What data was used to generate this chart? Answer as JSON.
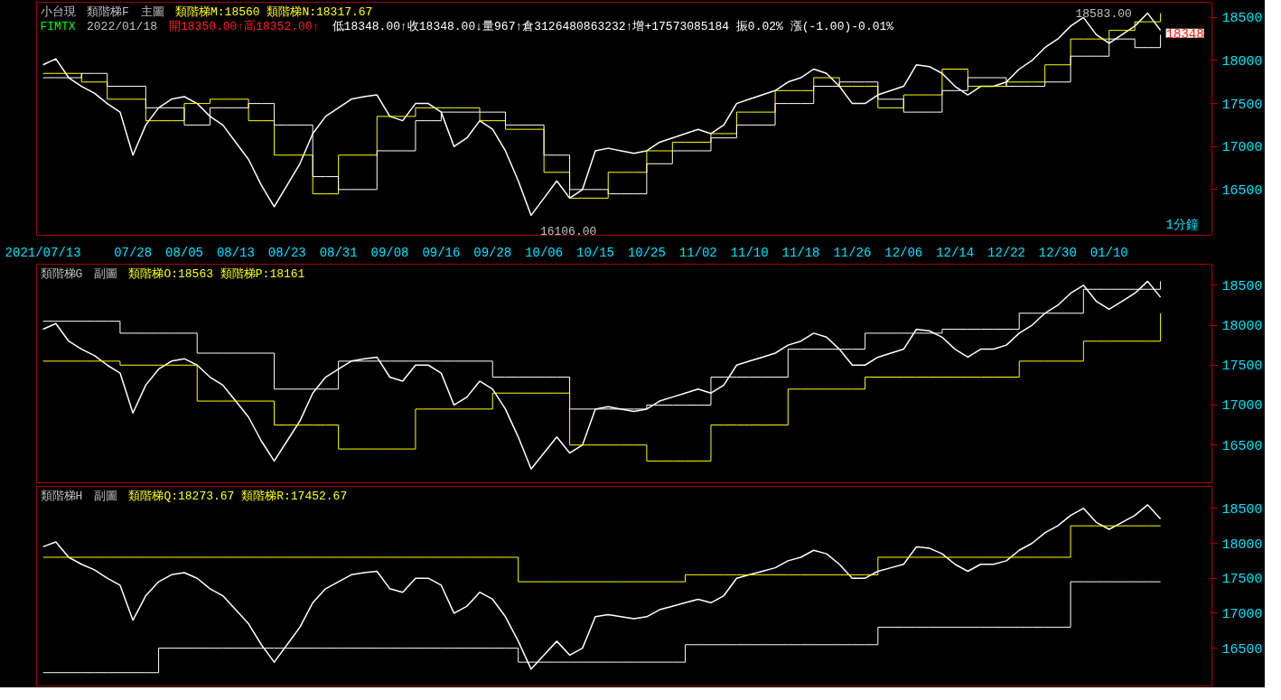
{
  "chart_data": [
    {
      "type": "line",
      "title": "小台現",
      "subtitle": "類階梯F",
      "ylim": [
        15968,
        18677
      ],
      "yticks": [
        16500,
        17000,
        17500,
        18000,
        18500
      ],
      "categories": [
        "2021/07/13",
        null,
        null,
        null,
        null,
        null,
        null,
        "07/28",
        null,
        null,
        null,
        "08/05",
        null,
        null,
        null,
        "08/13",
        null,
        null,
        null,
        "08/23",
        null,
        null,
        null,
        "08/31",
        null,
        null,
        null,
        "09/08",
        null,
        null,
        null,
        "09/16",
        null,
        null,
        null,
        "09/28",
        null,
        null,
        null,
        "10/06",
        null,
        null,
        null,
        "10/15",
        null,
        null,
        null,
        "10/25",
        null,
        null,
        null,
        "11/02",
        null,
        null,
        null,
        "11/10",
        null,
        null,
        null,
        "11/18",
        null,
        null,
        null,
        "11/26",
        null,
        null,
        null,
        "12/06",
        null,
        null,
        null,
        "12/14",
        null,
        null,
        null,
        "12/22",
        null,
        null,
        null,
        "12/30",
        null,
        null,
        null,
        "01/10",
        null,
        null,
        null,
        null
      ],
      "grid": false,
      "annotations": [
        "主圖",
        "類階梯M:18560 類階梯N:18317.67",
        "FIMTX",
        "2022/01/18",
        "開18350.00↑高18352.00↑",
        "低18348.00↑收18348.00↓量967↑倉3126480863232↑增+17573085184 振0.02% 漲(-1.00)-0.01%",
        "1分鐘",
        "18583.00",
        "16106.00",
        "18348"
      ],
      "series": [
        {
          "color": "#ffffff",
          "values": [
            17950,
            18020,
            17800,
            17700,
            17620,
            17500,
            17400,
            16900,
            17250,
            17450,
            17550,
            17580,
            17500,
            17350,
            17250,
            17050,
            16850,
            16550,
            16300,
            16550,
            16800,
            17150,
            17350,
            17450,
            17550,
            17580,
            17600,
            17350,
            17300,
            17500,
            17500,
            17400,
            17000,
            17100,
            17300,
            17200,
            16950,
            16600,
            16200,
            16400,
            16600,
            16400,
            16500,
            16950,
            16980,
            16950,
            16920,
            16950,
            17050,
            17100,
            17150,
            17200,
            17150,
            17250,
            17500,
            17550,
            17600,
            17650,
            17750,
            17800,
            17900,
            17850,
            17700,
            17500,
            17500,
            17600,
            17650,
            17700,
            17950,
            17930,
            17850,
            17700,
            17600,
            17700,
            17700,
            17750,
            17900,
            18000,
            18150,
            18250,
            18400,
            18500,
            18300,
            18200,
            18300,
            18400,
            18550,
            18350
          ]
        },
        {
          "type": "step",
          "color": "#ffff00",
          "values": [
            17850,
            17850,
            17850,
            17750,
            17750,
            17550,
            17550,
            17550,
            17300,
            17300,
            17300,
            17500,
            17500,
            17550,
            17550,
            17550,
            17300,
            17300,
            16900,
            16900,
            16900,
            16450,
            16450,
            16900,
            16900,
            16900,
            17350,
            17350,
            17350,
            17450,
            17450,
            17450,
            17450,
            17450,
            17300,
            17300,
            17200,
            17200,
            17200,
            16700,
            16700,
            16400,
            16400,
            16400,
            16700,
            16700,
            16700,
            16950,
            16950,
            17050,
            17050,
            17050,
            17150,
            17150,
            17400,
            17400,
            17400,
            17650,
            17650,
            17650,
            17800,
            17800,
            17700,
            17700,
            17700,
            17450,
            17450,
            17600,
            17600,
            17600,
            17900,
            17900,
            17700,
            17700,
            17700,
            17750,
            17750,
            17750,
            17950,
            17950,
            18250,
            18250,
            18250,
            18350,
            18350,
            18450,
            18450,
            18550
          ]
        },
        {
          "type": "step",
          "color": "#ffffff",
          "values": [
            17800,
            17800,
            17800,
            17850,
            17850,
            17700,
            17700,
            17700,
            17450,
            17450,
            17450,
            17250,
            17250,
            17450,
            17450,
            17450,
            17500,
            17500,
            17250,
            17250,
            17250,
            16650,
            16650,
            16500,
            16500,
            16500,
            16950,
            16950,
            16950,
            17300,
            17300,
            17400,
            17400,
            17400,
            17400,
            17400,
            17250,
            17250,
            17250,
            16900,
            16900,
            16500,
            16500,
            16500,
            16450,
            16450,
            16450,
            16800,
            16800,
            16950,
            16950,
            16950,
            17100,
            17100,
            17250,
            17250,
            17250,
            17500,
            17500,
            17500,
            17700,
            17700,
            17750,
            17750,
            17750,
            17550,
            17550,
            17400,
            17400,
            17400,
            17650,
            17650,
            17800,
            17800,
            17800,
            17700,
            17700,
            17700,
            17750,
            17750,
            18050,
            18050,
            18050,
            18250,
            18250,
            18150,
            18150,
            18300
          ]
        }
      ]
    },
    {
      "type": "line",
      "title": "類階梯G",
      "ylim": [
        16027,
        18764
      ],
      "yticks": [
        16500,
        17000,
        17500,
        18000,
        18500
      ],
      "tick_labels": "y",
      "grid": false,
      "categories": [
        null,
        null,
        null,
        null,
        null,
        null,
        null,
        null,
        null,
        null,
        null,
        null,
        null,
        null,
        null,
        null,
        null,
        null,
        null,
        null,
        null,
        null,
        null,
        null,
        null,
        null,
        null,
        null,
        null,
        null,
        null,
        null,
        null,
        null,
        null,
        null,
        null,
        null,
        null,
        null,
        null,
        null,
        null,
        null,
        null,
        null,
        null,
        null,
        null,
        null,
        null,
        null,
        null,
        null,
        null,
        null,
        null,
        null,
        null,
        null,
        null,
        null,
        null,
        null,
        null,
        null,
        null,
        null,
        null,
        null,
        null,
        null,
        null,
        null,
        null,
        null,
        null,
        null,
        null,
        null,
        null,
        null,
        null,
        null,
        null,
        null,
        null,
        null
      ],
      "annotations": [
        "副圖",
        "類階梯O:18563 類階梯P:18161"
      ],
      "series": [
        {
          "color": "#ffffff",
          "values": [
            17950,
            18020,
            17800,
            17700,
            17620,
            17500,
            17400,
            16900,
            17250,
            17450,
            17550,
            17580,
            17500,
            17350,
            17250,
            17050,
            16850,
            16550,
            16300,
            16550,
            16800,
            17150,
            17350,
            17450,
            17550,
            17580,
            17600,
            17350,
            17300,
            17500,
            17500,
            17400,
            17000,
            17100,
            17300,
            17200,
            16950,
            16600,
            16200,
            16400,
            16600,
            16400,
            16500,
            16950,
            16980,
            16950,
            16920,
            16950,
            17050,
            17100,
            17150,
            17200,
            17150,
            17250,
            17500,
            17550,
            17600,
            17650,
            17750,
            17800,
            17900,
            17850,
            17700,
            17500,
            17500,
            17600,
            17650,
            17700,
            17950,
            17930,
            17850,
            17700,
            17600,
            17700,
            17700,
            17750,
            17900,
            18000,
            18150,
            18250,
            18400,
            18500,
            18300,
            18200,
            18300,
            18400,
            18550,
            18350
          ]
        },
        {
          "type": "step",
          "color": "#ffffff",
          "values": [
            18050,
            18050,
            18050,
            18050,
            18050,
            18050,
            17900,
            17900,
            17900,
            17900,
            17900,
            17900,
            17650,
            17650,
            17650,
            17650,
            17650,
            17650,
            17200,
            17200,
            17200,
            17200,
            17200,
            17550,
            17550,
            17550,
            17550,
            17550,
            17550,
            17550,
            17550,
            17550,
            17550,
            17550,
            17550,
            17350,
            17350,
            17350,
            17350,
            17350,
            17350,
            16950,
            16950,
            16950,
            16950,
            16950,
            16950,
            17000,
            17000,
            17000,
            17000,
            17000,
            17350,
            17350,
            17350,
            17350,
            17350,
            17350,
            17700,
            17700,
            17700,
            17700,
            17700,
            17700,
            17900,
            17900,
            17900,
            17900,
            17900,
            17900,
            17950,
            17950,
            17950,
            17950,
            17950,
            17950,
            18150,
            18150,
            18150,
            18150,
            18150,
            18450,
            18450,
            18450,
            18450,
            18450,
            18450,
            18550
          ]
        },
        {
          "type": "step",
          "color": "#ffff00",
          "values": [
            17550,
            17550,
            17550,
            17550,
            17550,
            17550,
            17500,
            17500,
            17500,
            17500,
            17500,
            17500,
            17050,
            17050,
            17050,
            17050,
            17050,
            17050,
            16750,
            16750,
            16750,
            16750,
            16750,
            16450,
            16450,
            16450,
            16450,
            16450,
            16450,
            16950,
            16950,
            16950,
            16950,
            16950,
            16950,
            17150,
            17150,
            17150,
            17150,
            17150,
            17150,
            16500,
            16500,
            16500,
            16500,
            16500,
            16500,
            16300,
            16300,
            16300,
            16300,
            16300,
            16750,
            16750,
            16750,
            16750,
            16750,
            16750,
            17200,
            17200,
            17200,
            17200,
            17200,
            17200,
            17350,
            17350,
            17350,
            17350,
            17350,
            17350,
            17350,
            17350,
            17350,
            17350,
            17350,
            17350,
            17550,
            17550,
            17550,
            17550,
            17550,
            17800,
            17800,
            17800,
            17800,
            17800,
            17800,
            18150
          ]
        }
      ]
    },
    {
      "type": "line",
      "title": "類階梯H",
      "ylim": [
        15959,
        18814
      ],
      "yticks": [
        16500,
        17000,
        17500,
        18000,
        18500
      ],
      "tick_labels": "y",
      "grid": false,
      "categories": [
        null,
        null,
        null,
        null,
        null,
        null,
        null,
        null,
        null,
        null,
        null,
        null,
        null,
        null,
        null,
        null,
        null,
        null,
        null,
        null,
        null,
        null,
        null,
        null,
        null,
        null,
        null,
        null,
        null,
        null,
        null,
        null,
        null,
        null,
        null,
        null,
        null,
        null,
        null,
        null,
        null,
        null,
        null,
        null,
        null,
        null,
        null,
        null,
        null,
        null,
        null,
        null,
        null,
        null,
        null,
        null,
        null,
        null,
        null,
        null,
        null,
        null,
        null,
        null,
        null,
        null,
        null,
        null,
        null,
        null,
        null,
        null,
        null,
        null,
        null,
        null,
        null,
        null,
        null,
        null,
        null,
        null,
        null,
        null,
        null,
        null,
        null,
        null
      ],
      "annotations": [
        "副圖",
        "類階梯Q:18273.67 類階梯R:17452.67"
      ],
      "series": [
        {
          "color": "#ffffff",
          "values": [
            17950,
            18020,
            17800,
            17700,
            17620,
            17500,
            17400,
            16900,
            17250,
            17450,
            17550,
            17580,
            17500,
            17350,
            17250,
            17050,
            16850,
            16550,
            16300,
            16550,
            16800,
            17150,
            17350,
            17450,
            17550,
            17580,
            17600,
            17350,
            17300,
            17500,
            17500,
            17400,
            17000,
            17100,
            17300,
            17200,
            16950,
            16600,
            16200,
            16400,
            16600,
            16400,
            16500,
            16950,
            16980,
            16950,
            16920,
            16950,
            17050,
            17100,
            17150,
            17200,
            17150,
            17250,
            17500,
            17550,
            17600,
            17650,
            17750,
            17800,
            17900,
            17850,
            17700,
            17500,
            17500,
            17600,
            17650,
            17700,
            17950,
            17930,
            17850,
            17700,
            17600,
            17700,
            17700,
            17750,
            17900,
            18000,
            18150,
            18250,
            18400,
            18500,
            18300,
            18200,
            18300,
            18400,
            18550,
            18350
          ]
        },
        {
          "type": "step",
          "color": "#ffff00",
          "values": [
            17800,
            17800,
            17800,
            17800,
            17800,
            17800,
            17800,
            17800,
            17800,
            17800,
            17800,
            17800,
            17800,
            17800,
            17800,
            17800,
            17800,
            17800,
            17800,
            17800,
            17800,
            17800,
            17800,
            17800,
            17800,
            17800,
            17800,
            17800,
            17800,
            17800,
            17800,
            17800,
            17800,
            17800,
            17800,
            17800,
            17800,
            17450,
            17450,
            17450,
            17450,
            17450,
            17450,
            17450,
            17450,
            17450,
            17450,
            17450,
            17450,
            17450,
            17550,
            17550,
            17550,
            17550,
            17550,
            17550,
            17550,
            17550,
            17550,
            17550,
            17550,
            17550,
            17550,
            17550,
            17550,
            17800,
            17800,
            17800,
            17800,
            17800,
            17800,
            17800,
            17800,
            17800,
            17800,
            17800,
            17800,
            17800,
            17800,
            17800,
            18250,
            18250,
            18250,
            18250,
            18250,
            18250,
            18250,
            18250
          ]
        },
        {
          "type": "step",
          "color": "#ffffff",
          "values": [
            16150,
            16150,
            16150,
            16150,
            16150,
            16150,
            16150,
            16150,
            16150,
            16500,
            16500,
            16500,
            16500,
            16500,
            16500,
            16500,
            16500,
            16500,
            16500,
            16500,
            16500,
            16500,
            16500,
            16500,
            16500,
            16500,
            16500,
            16500,
            16500,
            16500,
            16500,
            16500,
            16500,
            16500,
            16500,
            16500,
            16500,
            16300,
            16300,
            16300,
            16300,
            16300,
            16300,
            16300,
            16300,
            16300,
            16300,
            16300,
            16300,
            16300,
            16550,
            16550,
            16550,
            16550,
            16550,
            16550,
            16550,
            16550,
            16550,
            16550,
            16550,
            16550,
            16550,
            16550,
            16550,
            16800,
            16800,
            16800,
            16800,
            16800,
            16800,
            16800,
            16800,
            16800,
            16800,
            16800,
            16800,
            16800,
            16800,
            16800,
            17450,
            17450,
            17450,
            17450,
            17450,
            17450,
            17450,
            17450
          ]
        }
      ]
    }
  ]
}
